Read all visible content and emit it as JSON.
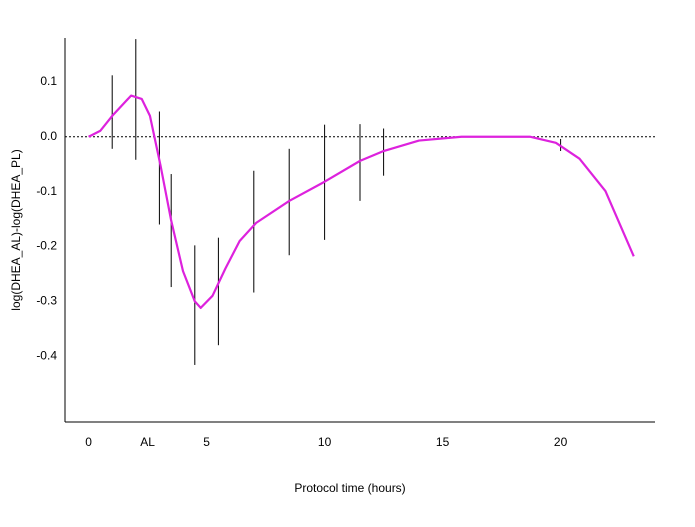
{
  "chart_data": {
    "type": "line",
    "xlabel": "Protocol time (hours)",
    "ylabel": "log(DHEA_AL)-log(DHEA_PL)",
    "xlim": [
      -1,
      24
    ],
    "ylim": [
      -0.52,
      0.18
    ],
    "xticks": [
      0,
      {
        "value": 2.5,
        "label": "AL"
      },
      5,
      10,
      15,
      20
    ],
    "yticks": [
      0.1,
      {
        "value": 0,
        "label": "0.0"
      },
      -0.1,
      -0.2,
      -0.3,
      -0.4
    ],
    "reference_line": 0,
    "curve": {
      "color": "#dd22dd",
      "x": [
        0,
        0.5,
        1,
        1.8,
        2.25,
        2.6,
        3.05,
        3.5,
        4.0,
        4.5,
        4.75,
        5.25,
        5.8,
        6.4,
        7.1,
        8.5,
        10,
        11.5,
        12.5,
        14,
        15.8,
        18.7,
        19.8,
        20.8,
        21.9,
        23.1
      ],
      "values": [
        0,
        0.011,
        0.038,
        0.075,
        0.069,
        0.038,
        -0.053,
        -0.153,
        -0.245,
        -0.3,
        -0.312,
        -0.29,
        -0.24,
        -0.19,
        -0.157,
        -0.117,
        -0.082,
        -0.044,
        -0.026,
        -0.007,
        0,
        0,
        -0.011,
        -0.04,
        -0.099,
        -0.218
      ]
    },
    "error_bars": {
      "color": "#000000",
      "x": [
        1,
        2,
        3,
        3.5,
        4.5,
        5.5,
        7,
        8.5,
        10,
        11.5,
        12.5,
        20
      ],
      "values": [
        0.045,
        0.068,
        -0.057,
        -0.171,
        -0.307,
        -0.282,
        -0.173,
        -0.119,
        -0.083,
        -0.047,
        -0.028,
        -0.015
      ],
      "errors": [
        0.067,
        0.11,
        0.103,
        0.103,
        0.109,
        0.098,
        0.111,
        0.097,
        0.105,
        0.07,
        0.043,
        0.011
      ]
    }
  }
}
